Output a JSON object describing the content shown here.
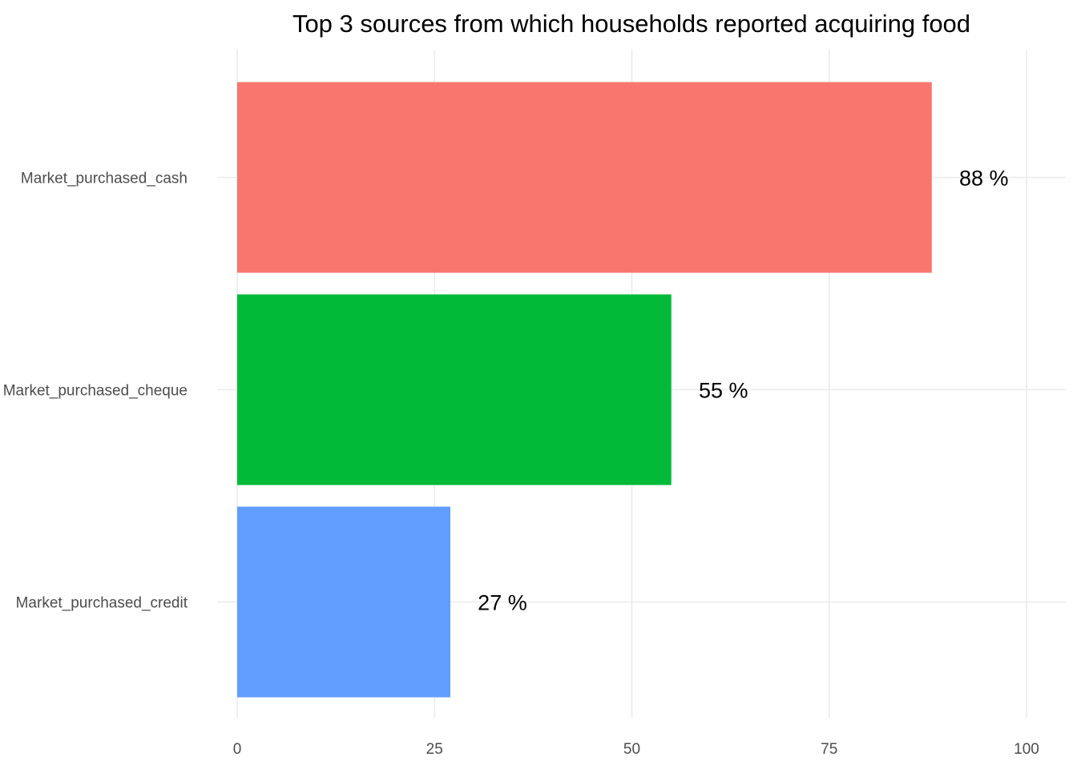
{
  "chart_data": {
    "type": "bar",
    "orientation": "horizontal",
    "title": "Top 3 sources from which households reported acquiring food",
    "xlabel": "",
    "ylabel": "",
    "categories": [
      "Market_purchased_cash",
      "Market_purchased_cheque",
      "Market_purchased_credit"
    ],
    "values": [
      88,
      55,
      27
    ],
    "data_labels": [
      "88 %",
      "55 %",
      "27 %"
    ],
    "colors": [
      "#F8766D",
      "#00BA38",
      "#619CFF"
    ],
    "xlim": [
      0,
      100
    ],
    "x_ticks": [
      0,
      25,
      50,
      75,
      100
    ],
    "x_tick_labels": [
      "0",
      "25",
      "50",
      "75",
      "100"
    ],
    "grid": true,
    "legend": "none"
  }
}
